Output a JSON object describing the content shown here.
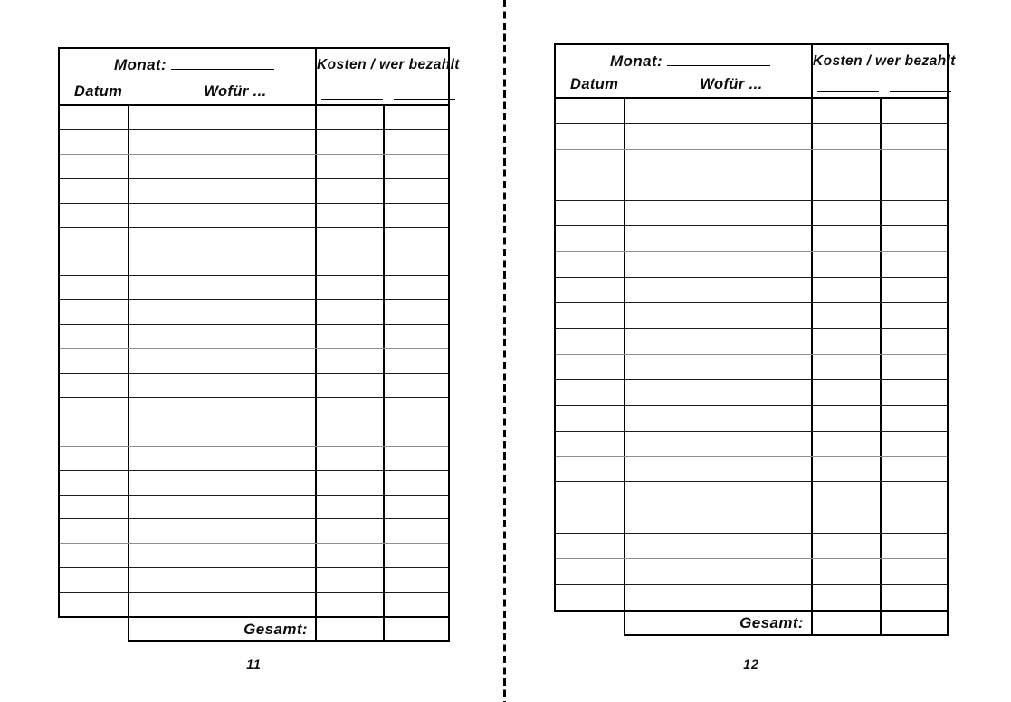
{
  "document": {
    "kind": "monthly-expense-tracker-spread",
    "paper_color": "#ffffff",
    "ink_color": "#000000",
    "cut_line_style": "vertical dashed"
  },
  "pages": [
    {
      "page_number": "11",
      "header": {
        "monat_label": "Monat:",
        "monat_value": "",
        "datum_label": "Datum",
        "wofuer_label": "Wofür ...",
        "kosten_label": "Kosten / wer bezahlt",
        "kosten_sub_left": "",
        "kosten_sub_right": ""
      },
      "rows": 21,
      "gesamt_label": "Gesamt:",
      "gesamt_value_kosten": "",
      "gesamt_value_wer": ""
    },
    {
      "page_number": "12",
      "header": {
        "monat_label": "Monat:",
        "monat_value": "",
        "datum_label": "Datum",
        "wofuer_label": "Wofür ...",
        "kosten_label": "Kosten / wer bezahlt",
        "kosten_sub_left": "",
        "kosten_sub_right": ""
      },
      "rows": 20,
      "gesamt_label": "Gesamt:",
      "gesamt_value_kosten": "",
      "gesamt_value_wer": ""
    }
  ]
}
